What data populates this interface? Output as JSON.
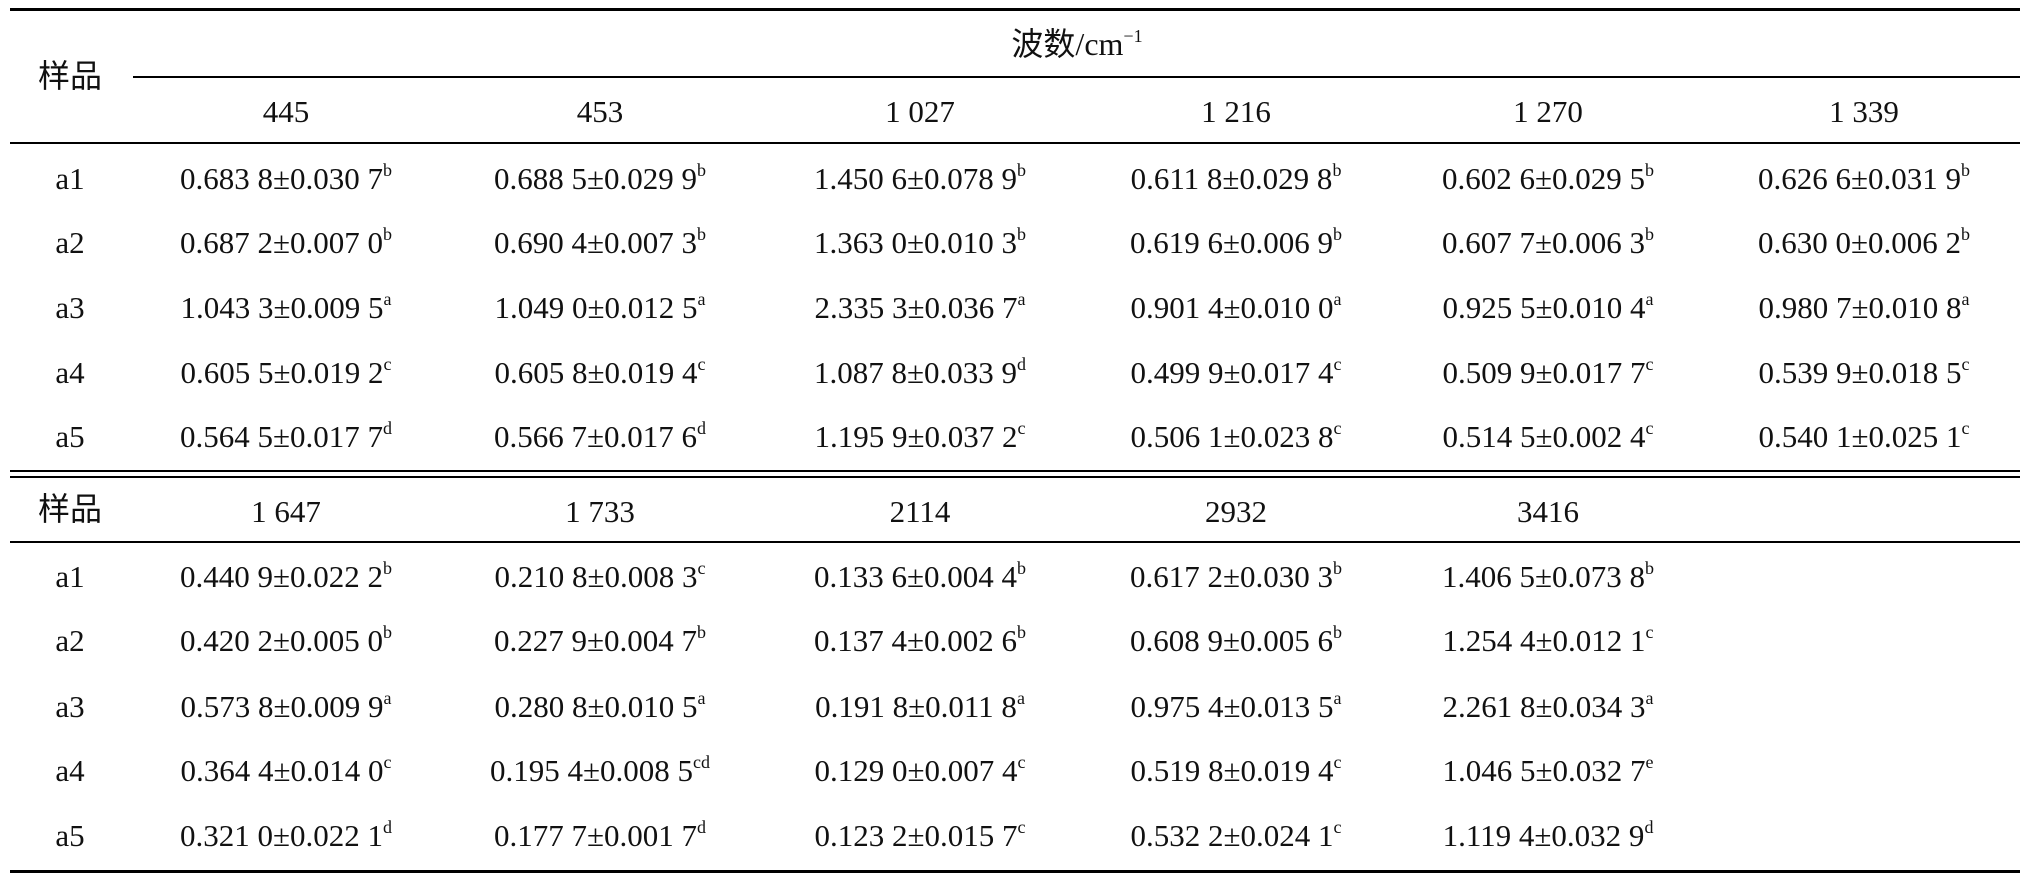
{
  "header": {
    "sample_label": "样品",
    "group_label": "波数/cm",
    "group_label_sup": "−1"
  },
  "part1": {
    "columns": [
      "445",
      "453",
      "1 027",
      "1 216",
      "1 270",
      "1 339"
    ],
    "rows": [
      {
        "sample": "a1",
        "cells": [
          {
            "v": "0.683 8±0.030 7",
            "s": "b"
          },
          {
            "v": "0.688 5±0.029 9",
            "s": "b"
          },
          {
            "v": "1.450 6±0.078 9",
            "s": "b"
          },
          {
            "v": "0.611 8±0.029 8",
            "s": "b"
          },
          {
            "v": "0.602 6±0.029 5",
            "s": "b"
          },
          {
            "v": "0.626 6±0.031 9",
            "s": "b"
          }
        ]
      },
      {
        "sample": "a2",
        "cells": [
          {
            "v": "0.687 2±0.007 0",
            "s": "b"
          },
          {
            "v": "0.690 4±0.007 3",
            "s": "b"
          },
          {
            "v": "1.363 0±0.010 3",
            "s": "b"
          },
          {
            "v": "0.619 6±0.006 9",
            "s": "b"
          },
          {
            "v": "0.607 7±0.006 3",
            "s": "b"
          },
          {
            "v": "0.630 0±0.006 2",
            "s": "b"
          }
        ]
      },
      {
        "sample": "a3",
        "cells": [
          {
            "v": "1.043 3±0.009 5",
            "s": "a"
          },
          {
            "v": "1.049 0±0.012 5",
            "s": "a"
          },
          {
            "v": "2.335 3±0.036 7",
            "s": "a"
          },
          {
            "v": "0.901 4±0.010 0",
            "s": "a"
          },
          {
            "v": "0.925 5±0.010 4",
            "s": "a"
          },
          {
            "v": "0.980 7±0.010 8",
            "s": "a"
          }
        ]
      },
      {
        "sample": "a4",
        "cells": [
          {
            "v": "0.605 5±0.019 2",
            "s": "c"
          },
          {
            "v": "0.605 8±0.019 4",
            "s": "c"
          },
          {
            "v": "1.087 8±0.033 9",
            "s": "d"
          },
          {
            "v": "0.499 9±0.017 4",
            "s": "c"
          },
          {
            "v": "0.509 9±0.017 7",
            "s": "c"
          },
          {
            "v": "0.539 9±0.018 5",
            "s": "c"
          }
        ]
      },
      {
        "sample": "a5",
        "cells": [
          {
            "v": "0.564 5±0.017 7",
            "s": "d"
          },
          {
            "v": "0.566 7±0.017 6",
            "s": "d"
          },
          {
            "v": "1.195 9±0.037 2",
            "s": "c"
          },
          {
            "v": "0.506 1±0.023 8",
            "s": "c"
          },
          {
            "v": "0.514 5±0.002 4",
            "s": "c"
          },
          {
            "v": "0.540 1±0.025 1",
            "s": "c"
          }
        ]
      }
    ]
  },
  "part2": {
    "columns": [
      "1 647",
      "1 733",
      "2114",
      "2932",
      "3416"
    ],
    "rows": [
      {
        "sample": "a1",
        "cells": [
          {
            "v": "0.440 9±0.022 2",
            "s": "b"
          },
          {
            "v": "0.210 8±0.008 3",
            "s": "c"
          },
          {
            "v": "0.133 6±0.004 4",
            "s": "b"
          },
          {
            "v": "0.617 2±0.030 3",
            "s": "b"
          },
          {
            "v": "1.406 5±0.073 8",
            "s": "b"
          }
        ]
      },
      {
        "sample": "a2",
        "cells": [
          {
            "v": "0.420 2±0.005 0",
            "s": "b"
          },
          {
            "v": "0.227 9±0.004 7",
            "s": "b"
          },
          {
            "v": "0.137 4±0.002 6",
            "s": "b"
          },
          {
            "v": "0.608 9±0.005 6",
            "s": "b"
          },
          {
            "v": "1.254 4±0.012 1",
            "s": "c"
          }
        ]
      },
      {
        "sample": "a3",
        "cells": [
          {
            "v": "0.573 8±0.009 9",
            "s": "a"
          },
          {
            "v": "0.280 8±0.010 5",
            "s": "a"
          },
          {
            "v": "0.191 8±0.011 8",
            "s": "a"
          },
          {
            "v": "0.975 4±0.013 5",
            "s": "a"
          },
          {
            "v": "2.261 8±0.034 3",
            "s": "a"
          }
        ]
      },
      {
        "sample": "a4",
        "cells": [
          {
            "v": "0.364 4±0.014 0",
            "s": "c"
          },
          {
            "v": "0.195 4±0.008 5",
            "s": "cd"
          },
          {
            "v": "0.129 0±0.007 4",
            "s": "c"
          },
          {
            "v": "0.519 8±0.019 4",
            "s": "c"
          },
          {
            "v": "1.046 5±0.032 7",
            "s": "e"
          }
        ]
      },
      {
        "sample": "a5",
        "cells": [
          {
            "v": "0.321 0±0.022 1",
            "s": "d"
          },
          {
            "v": "0.177 7±0.001 7",
            "s": "d"
          },
          {
            "v": "0.123 2±0.015 7",
            "s": "c"
          },
          {
            "v": "0.532 2±0.024 1",
            "s": "c"
          },
          {
            "v": "1.119 4±0.032 9",
            "s": "d"
          }
        ]
      }
    ]
  }
}
